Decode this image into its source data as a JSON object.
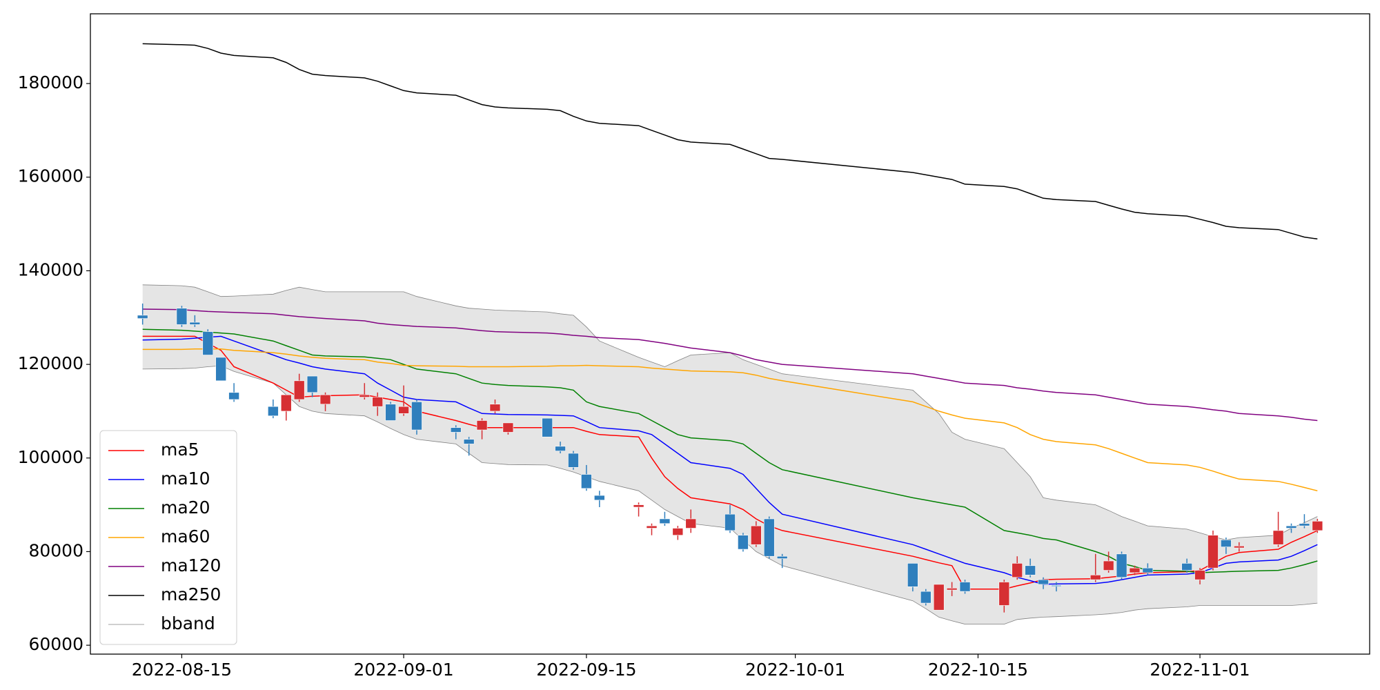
{
  "chart_data": {
    "type": "candlestick",
    "x": [
      "2022-08-12",
      "2022-08-15",
      "2022-08-16",
      "2022-08-17",
      "2022-08-18",
      "2022-08-19",
      "2022-08-22",
      "2022-08-23",
      "2022-08-24",
      "2022-08-25",
      "2022-08-26",
      "2022-08-29",
      "2022-08-30",
      "2022-08-31",
      "2022-09-01",
      "2022-09-02",
      "2022-09-05",
      "2022-09-06",
      "2022-09-07",
      "2022-09-08",
      "2022-09-09",
      "2022-09-12",
      "2022-09-13",
      "2022-09-14",
      "2022-09-15",
      "2022-09-16",
      "2022-09-19",
      "2022-09-20",
      "2022-09-21",
      "2022-09-22",
      "2022-09-23",
      "2022-09-26",
      "2022-09-27",
      "2022-09-28",
      "2022-09-29",
      "2022-09-30",
      "2022-10-10",
      "2022-10-11",
      "2022-10-12",
      "2022-10-13",
      "2022-10-14",
      "2022-10-17",
      "2022-10-18",
      "2022-10-19",
      "2022-10-20",
      "2022-10-21",
      "2022-10-24",
      "2022-10-25",
      "2022-10-26",
      "2022-10-27",
      "2022-10-28",
      "2022-10-31",
      "2022-11-01",
      "2022-11-02",
      "2022-11-03",
      "2022-11-04",
      "2022-11-07",
      "2022-11-08",
      "2022-11-09",
      "2022-11-10"
    ],
    "open": [
      130500,
      132000,
      129000,
      127000,
      121500,
      114000,
      111000,
      110000,
      112500,
      117500,
      111500,
      113000,
      111000,
      111500,
      109500,
      112000,
      106500,
      104000,
      106000,
      110000,
      105500,
      108500,
      102500,
      101000,
      96500,
      92000,
      89500,
      85000,
      87000,
      83500,
      85000,
      88000,
      83500,
      81500,
      87000,
      79000,
      77500,
      71500,
      67500,
      71800,
      73500,
      68500,
      74500,
      77000,
      74000,
      72800,
      74000,
      76000,
      79500,
      75500,
      76500,
      77500,
      74000,
      76500,
      82500,
      80800,
      81500,
      85500,
      86000,
      84500
    ],
    "high": [
      133000,
      132500,
      130500,
      127500,
      121500,
      116000,
      112500,
      113500,
      118000,
      117500,
      114000,
      116000,
      114000,
      112000,
      115500,
      112500,
      107000,
      104500,
      108500,
      112500,
      107500,
      108500,
      103500,
      101500,
      98500,
      93000,
      90500,
      86000,
      88500,
      85500,
      89000,
      90000,
      84000,
      86500,
      87500,
      79500,
      77500,
      72000,
      73000,
      73500,
      74000,
      74000,
      79000,
      78500,
      74500,
      73500,
      79500,
      80000,
      80000,
      77000,
      77500,
      78500,
      76500,
      84500,
      83000,
      82000,
      88500,
      86000,
      88000,
      87000
    ],
    "low": [
      128500,
      128000,
      128000,
      122000,
      116500,
      112000,
      108500,
      108000,
      112000,
      113000,
      110000,
      112500,
      109000,
      108000,
      109000,
      105000,
      104000,
      100500,
      104000,
      109500,
      105000,
      104500,
      101000,
      97500,
      93000,
      89500,
      87500,
      83500,
      85500,
      82500,
      84000,
      84000,
      80000,
      81000,
      78500,
      76500,
      71500,
      68500,
      67500,
      70500,
      71000,
      67000,
      74000,
      74500,
      72000,
      71500,
      73500,
      75500,
      74000,
      75000,
      75000,
      75500,
      73000,
      76000,
      79500,
      80000,
      81000,
      84000,
      85000,
      84000
    ],
    "close": [
      129800,
      128500,
      128500,
      122000,
      116500,
      112500,
      109000,
      113500,
      116500,
      114000,
      113500,
      113500,
      113000,
      108000,
      111000,
      106000,
      105500,
      103000,
      108000,
      111500,
      107500,
      104500,
      101500,
      98000,
      93500,
      91000,
      90000,
      85500,
      86000,
      85000,
      87000,
      84500,
      80500,
      85500,
      79000,
      78500,
      72500,
      69000,
      73000,
      72200,
      71500,
      73500,
      77500,
      75000,
      73000,
      72600,
      75000,
      78000,
      74500,
      76500,
      75500,
      76000,
      76000,
      83500,
      81000,
      81200,
      84500,
      85000,
      85500,
      86500
    ],
    "up_color": "#d62f33",
    "down_color": "#2f7fbd",
    "series": [
      {
        "name": "ma5",
        "color": "red",
        "values": [
          126000,
          126000,
          126000,
          124500,
          123000,
          119500,
          116000,
          114500,
          113000,
          113200,
          113300,
          113500,
          113000,
          112500,
          112000,
          110000,
          108000,
          107200,
          106500,
          106500,
          106500,
          106500,
          106500,
          106500,
          105700,
          105000,
          104500,
          100000,
          96000,
          93500,
          91500,
          90200,
          89000,
          87000,
          85500,
          84500,
          79000,
          78300,
          77600,
          77000,
          72000,
          72000,
          72700,
          73300,
          74000,
          74100,
          74200,
          74500,
          74800,
          75200,
          75500,
          75700,
          76000,
          77500,
          79000,
          79800,
          80500,
          82000,
          83200,
          84500
        ]
      },
      {
        "name": "ma10",
        "color": "blue",
        "values": [
          125200,
          125400,
          125600,
          125800,
          126000,
          125000,
          122000,
          121000,
          120300,
          119500,
          119000,
          118000,
          116000,
          114500,
          113000,
          112500,
          112000,
          110700,
          109500,
          109400,
          109300,
          109200,
          109100,
          109000,
          107800,
          106500,
          105800,
          105000,
          103000,
          101000,
          99000,
          97800,
          96500,
          93500,
          90500,
          88000,
          81500,
          80500,
          79500,
          78500,
          77500,
          75500,
          74500,
          73800,
          73000,
          73100,
          73200,
          73500,
          74000,
          74500,
          75000,
          75200,
          75500,
          76500,
          77500,
          77800,
          78200,
          79000,
          80200,
          81500
        ]
      },
      {
        "name": "ma20",
        "color": "green",
        "values": [
          127500,
          127300,
          127100,
          126900,
          126700,
          126500,
          125000,
          124000,
          123000,
          122000,
          121800,
          121600,
          121300,
          121000,
          120000,
          119000,
          118000,
          117000,
          116000,
          115700,
          115500,
          115200,
          115000,
          114500,
          112000,
          111000,
          109500,
          108000,
          106500,
          105000,
          104300,
          103700,
          103000,
          101000,
          99000,
          97500,
          91500,
          91000,
          90500,
          90000,
          89500,
          84500,
          84000,
          83500,
          82800,
          82500,
          80000,
          79000,
          77500,
          76800,
          76000,
          75800,
          75500,
          75600,
          75700,
          75800,
          76000,
          76500,
          77200,
          78000
        ]
      },
      {
        "name": "ma60",
        "color": "orange",
        "values": [
          123200,
          123200,
          123300,
          123300,
          123300,
          123000,
          122500,
          122200,
          121800,
          121500,
          121300,
          121000,
          120500,
          120200,
          119800,
          119700,
          119600,
          119500,
          119500,
          119500,
          119500,
          119600,
          119700,
          119700,
          119800,
          119700,
          119500,
          119200,
          119000,
          118800,
          118600,
          118400,
          118200,
          117700,
          117000,
          116500,
          112000,
          111000,
          110000,
          109200,
          108500,
          107500,
          106500,
          105000,
          104000,
          103500,
          102800,
          102000,
          101000,
          100000,
          99000,
          98500,
          98000,
          97200,
          96300,
          95500,
          95000,
          94400,
          93700,
          93000
        ]
      },
      {
        "name": "ma120",
        "color": "purple",
        "values": [
          131800,
          131700,
          131500,
          131300,
          131200,
          131100,
          130800,
          130500,
          130200,
          130000,
          129800,
          129300,
          128800,
          128500,
          128300,
          128100,
          127800,
          127500,
          127200,
          127000,
          126900,
          126700,
          126500,
          126200,
          126000,
          125700,
          125300,
          124900,
          124500,
          124000,
          123500,
          122500,
          121800,
          121000,
          120500,
          120000,
          118000,
          117500,
          117000,
          116500,
          116000,
          115500,
          115000,
          114700,
          114300,
          114000,
          113500,
          113000,
          112500,
          112000,
          111500,
          111000,
          110700,
          110300,
          110000,
          109500,
          109000,
          108700,
          108300,
          108000
        ]
      },
      {
        "name": "ma250",
        "color": "black",
        "values": [
          188500,
          188300,
          188200,
          187500,
          186500,
          186000,
          185500,
          184500,
          183000,
          182000,
          181700,
          181200,
          180500,
          179500,
          178500,
          178000,
          177500,
          176500,
          175500,
          175000,
          174800,
          174500,
          174200,
          173000,
          172000,
          171500,
          171000,
          170000,
          169000,
          168000,
          167500,
          167000,
          166000,
          165000,
          164000,
          163800,
          161000,
          160500,
          160000,
          159500,
          158500,
          158000,
          157500,
          156500,
          155500,
          155200,
          154800,
          154000,
          153200,
          152500,
          152200,
          151700,
          151000,
          150300,
          149500,
          149200,
          148800,
          148000,
          147200,
          146800
        ]
      }
    ],
    "bband": {
      "name": "bband",
      "color": "gray",
      "fill": "#e5e5e5",
      "upper": [
        137000,
        136800,
        136500,
        135500,
        134500,
        134600,
        135000,
        135800,
        136500,
        136000,
        135500,
        135500,
        135500,
        135500,
        135500,
        134500,
        132500,
        132000,
        131800,
        131600,
        131500,
        131200,
        130800,
        130500,
        128000,
        125000,
        121500,
        120500,
        119500,
        120800,
        122000,
        122500,
        121000,
        120000,
        119000,
        118000,
        114500,
        112000,
        109500,
        105500,
        104000,
        102000,
        99000,
        96000,
        91500,
        91000,
        90000,
        88800,
        87500,
        86500,
        85500,
        84800,
        84000,
        83200,
        82500,
        83000,
        83500,
        85000,
        86200,
        87500
      ],
      "lower": [
        119000,
        119100,
        119200,
        119500,
        119700,
        118500,
        116000,
        113500,
        111000,
        110000,
        109500,
        109000,
        107700,
        106300,
        105000,
        104000,
        103000,
        101000,
        99000,
        98800,
        98600,
        98500,
        97800,
        97000,
        96000,
        95000,
        93000,
        91000,
        89000,
        87500,
        86000,
        85000,
        82500,
        80000,
        78500,
        77000,
        69500,
        67800,
        66000,
        65200,
        64500,
        64500,
        65500,
        65800,
        66000,
        66100,
        66500,
        66700,
        67000,
        67500,
        67800,
        68200,
        68500,
        68500,
        68500,
        68500,
        68500,
        68500,
        68700,
        69000
      ]
    },
    "xlim": [
      "2022-08-08",
      "2022-11-14"
    ],
    "xticks": [
      "2022-08-15",
      "2022-09-01",
      "2022-09-15",
      "2022-10-01",
      "2022-10-15",
      "2022-11-01"
    ],
    "ylim": [
      58100,
      194900
    ],
    "yticks": [
      60000,
      80000,
      100000,
      120000,
      140000,
      160000,
      180000
    ],
    "legend": "lower left"
  }
}
